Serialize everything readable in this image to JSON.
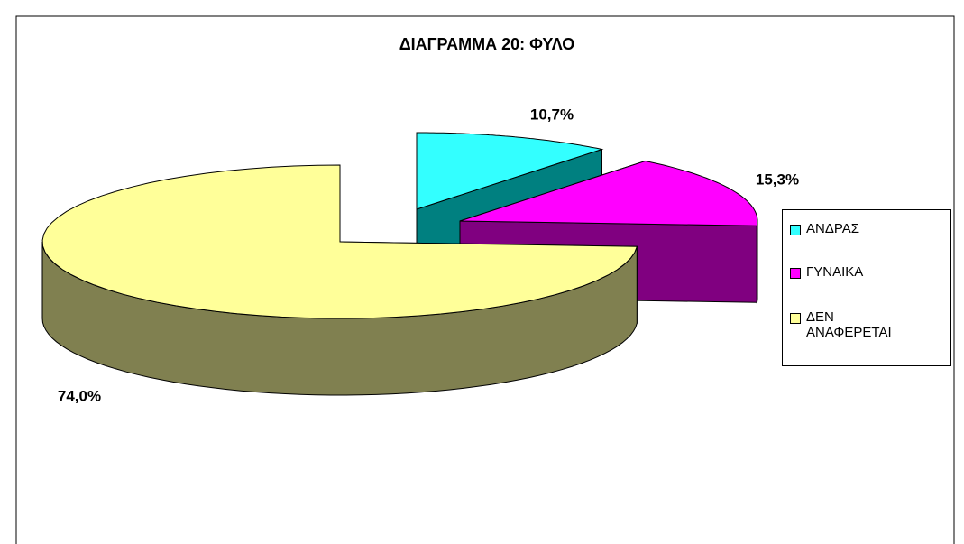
{
  "chart_data": {
    "type": "pie",
    "title": "ΔΙΑΓΡΑΜΜΑ 20: ΦΥΛΟ",
    "categories": [
      "ΑΝΔΡΑΣ",
      "ΓΥΝΑΙΚΑ",
      "ΔΕΝ ΑΝΑΦΕΡΕΤΑΙ"
    ],
    "values": [
      10.7,
      15.3,
      74.0
    ],
    "value_labels": [
      "10,7%",
      "15,3%",
      "74,0%"
    ],
    "colors": [
      "#33ffff",
      "#ff00ff",
      "#ffff99"
    ],
    "side_colors": [
      "#008080",
      "#800080",
      "#808050"
    ],
    "legend": "right"
  }
}
